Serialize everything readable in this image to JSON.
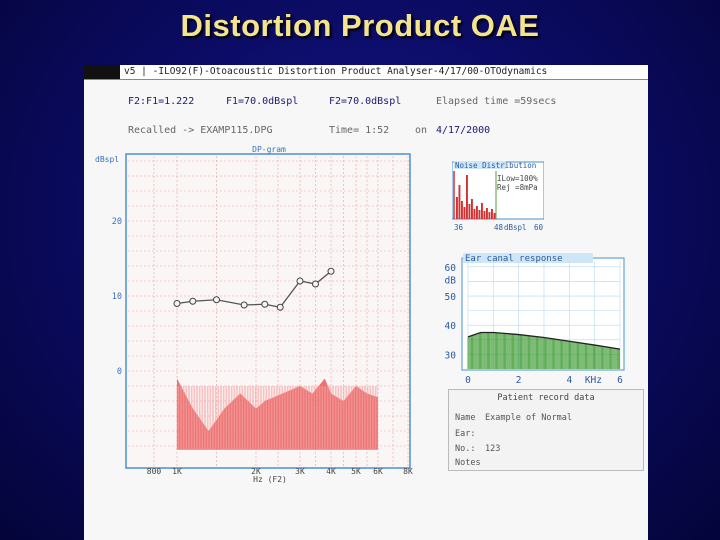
{
  "slide": {
    "title": "Distortion Product OAE"
  },
  "window": {
    "version": "v5",
    "title": "-ILO92(F)-Otoacoustic Distortion Product Analyser-4/17/00-OTOdynamics"
  },
  "params": {
    "ratio": "F2:F1=1.222",
    "f1_level": "F1=70.0dBspl",
    "f2_level": "F2=70.0dBspl",
    "elapsed": "Elapsed time =59secs",
    "recalled": "Recalled -> EXAMP115.DPG",
    "time": "Time= 1:52",
    "date_on": "on",
    "date": "4/17/2000"
  },
  "dpgram": {
    "title": "DP-gram",
    "ylabel": "dBspl",
    "xlabel": "Hz (F2)",
    "y_ticks": [
      "20",
      "10",
      "0"
    ],
    "x_ticks": [
      "800",
      "1K",
      "2K",
      "3K",
      "4K",
      "5K",
      "6K",
      "8K"
    ]
  },
  "noise": {
    "title": "Noise Distribution",
    "n_label": "N",
    "low": "ILow=100%",
    "rej": "Rej =8mPa",
    "x_ticks": [
      "36",
      "48",
      "dBspl",
      "60"
    ]
  },
  "ear": {
    "title": "Ear canal response",
    "y_ticks": [
      "60",
      "dB",
      "50",
      "40",
      "30"
    ],
    "x_ticks": [
      "0",
      "2",
      "4",
      "KHz",
      "6"
    ]
  },
  "patient": {
    "title": "Patient record data",
    "name_label": "Name",
    "name_value": "Example of Normal",
    "ear_label": "Ear:",
    "no_label": "No.:",
    "no_value": "123",
    "notes_label": "Notes"
  },
  "colors": {
    "dp_line": "#555555",
    "noise_fill": "#e84848",
    "ear_fill": "#3c9a30",
    "grid": "#e88888",
    "panel_border": "#4a90d0"
  },
  "chart_data": [
    {
      "type": "line",
      "title": "DP-gram",
      "ylabel": "dBspl",
      "xlabel": "Hz (F2)",
      "x": [
        1000,
        1200,
        1500,
        1850,
        2200,
        2550,
        3000,
        3500,
        4000,
        4800,
        5600
      ],
      "series": [
        {
          "values": [
            9,
            9.3,
            9.5,
            8.8,
            8.9,
            8.5,
            12,
            11.6,
            13.3,
            null,
            null
          ]
        }
      ],
      "ylim": [
        -11,
        30
      ],
      "grid": true
    },
    {
      "type": "area",
      "title": "Ear canal response",
      "xlabel": "KHz",
      "ylabel": "dB",
      "x": [
        0,
        0.5,
        1,
        2,
        3,
        4,
        5,
        6
      ],
      "series": [
        {
          "values": [
            36,
            37.5,
            37.5,
            36.8,
            35.8,
            34.5,
            33.2,
            31.8
          ]
        }
      ],
      "ylim": [
        25,
        62
      ],
      "xlim": [
        0,
        6
      ],
      "grid": true
    }
  ]
}
